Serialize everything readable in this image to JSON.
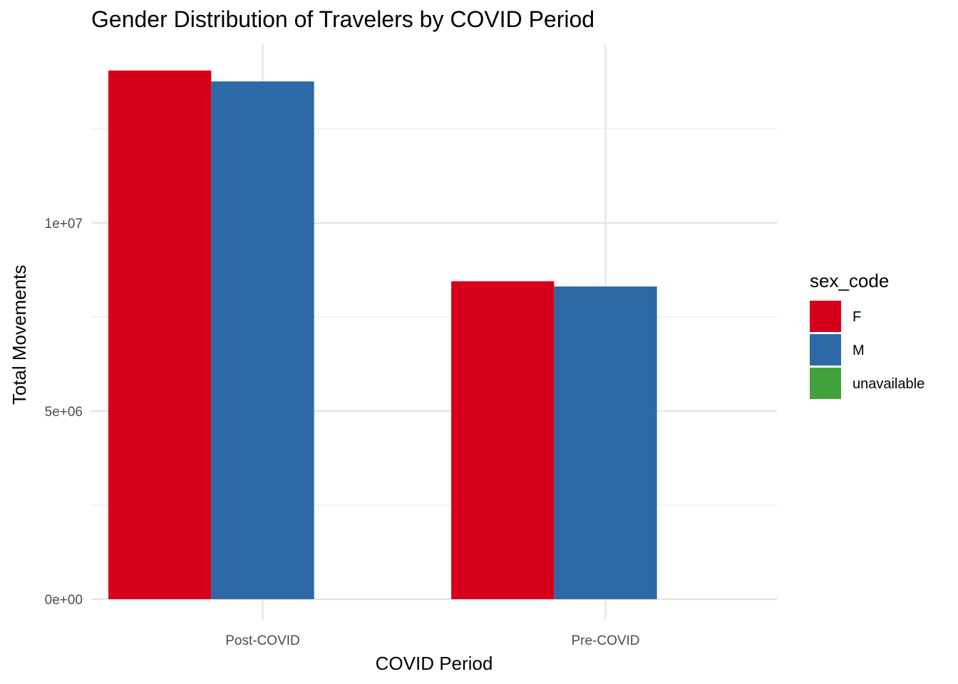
{
  "chart_data": {
    "type": "bar",
    "title": "Gender Distribution of Travelers by COVID Period",
    "xlabel": "COVID Period",
    "ylabel": "Total Movements",
    "categories": [
      "Post-COVID",
      "Pre-COVID"
    ],
    "series": [
      {
        "name": "F",
        "color": "#d7001a",
        "values": [
          14050000,
          8450000
        ]
      },
      {
        "name": "M",
        "color": "#2d69a6",
        "values": [
          13760000,
          8310000
        ]
      },
      {
        "name": "unavailable",
        "color": "#41a33b",
        "values": [
          0,
          0
        ]
      }
    ],
    "ylim": [
      -550000,
      14750000
    ],
    "y_ticks": [
      0,
      5000000,
      10000000
    ],
    "y_tick_labels": [
      "0e+00",
      "5e+06",
      "1e+07"
    ],
    "y_minor_ticks": [
      2500000,
      7500000,
      12500000
    ],
    "grid": true,
    "legend": {
      "title": "sex_code",
      "position": "right",
      "entries": [
        "F",
        "M",
        "unavailable"
      ]
    }
  }
}
